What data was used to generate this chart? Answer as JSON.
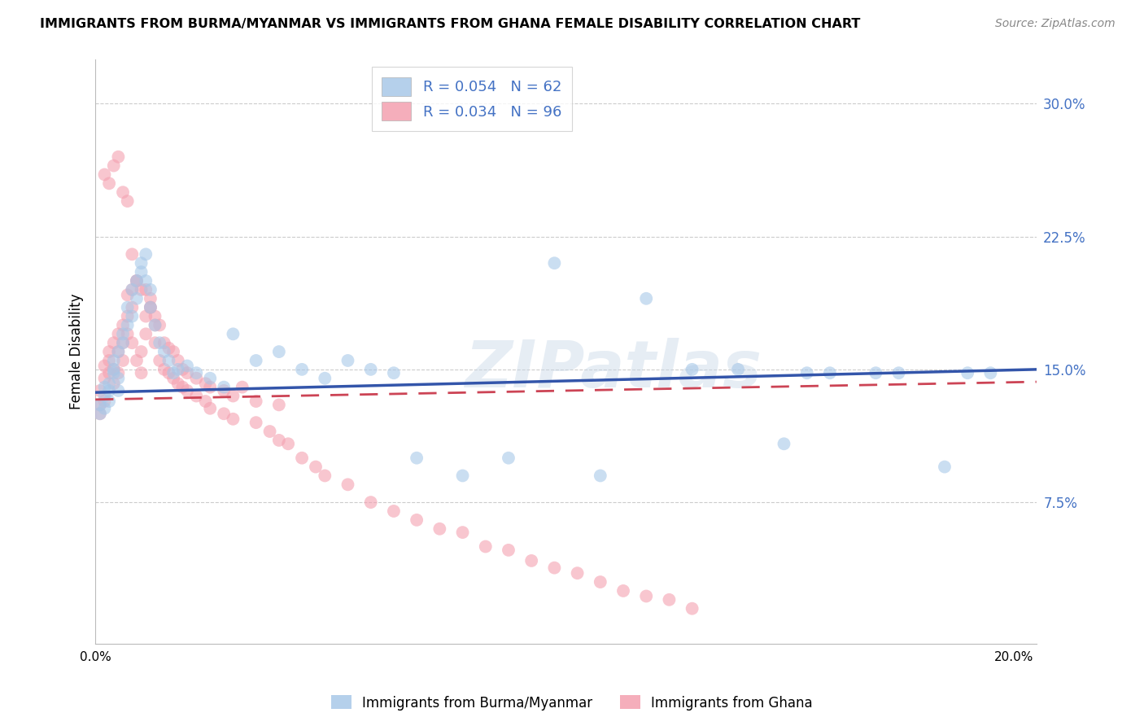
{
  "title": "IMMIGRANTS FROM BURMA/MYANMAR VS IMMIGRANTS FROM GHANA FEMALE DISABILITY CORRELATION CHART",
  "source": "Source: ZipAtlas.com",
  "ylabel": "Female Disability",
  "xlim": [
    0.0,
    0.205
  ],
  "ylim": [
    -0.005,
    0.325
  ],
  "yticks": [
    0.075,
    0.15,
    0.225,
    0.3
  ],
  "ytick_labels": [
    "7.5%",
    "15.0%",
    "22.5%",
    "30.0%"
  ],
  "grid_color": "#cccccc",
  "background_color": "#ffffff",
  "watermark": "ZIPatlas",
  "legend_label1": "R = 0.054   N = 62",
  "legend_label2": "R = 0.034   N = 96",
  "color_blue": "#a8c8e8",
  "color_pink": "#f4a0b0",
  "trendline_blue": "#3355aa",
  "trendline_pink": "#cc4455",
  "footer_label1": "Immigrants from Burma/Myanmar",
  "footer_label2": "Immigrants from Ghana",
  "burma_x": [
    0.001,
    0.001,
    0.002,
    0.002,
    0.002,
    0.003,
    0.003,
    0.003,
    0.004,
    0.004,
    0.004,
    0.005,
    0.005,
    0.005,
    0.006,
    0.006,
    0.007,
    0.007,
    0.008,
    0.008,
    0.009,
    0.009,
    0.01,
    0.01,
    0.011,
    0.011,
    0.012,
    0.012,
    0.013,
    0.014,
    0.015,
    0.016,
    0.017,
    0.018,
    0.02,
    0.022,
    0.025,
    0.028,
    0.03,
    0.035,
    0.04,
    0.045,
    0.05,
    0.055,
    0.06,
    0.065,
    0.07,
    0.08,
    0.09,
    0.1,
    0.11,
    0.12,
    0.13,
    0.14,
    0.15,
    0.155,
    0.16,
    0.17,
    0.175,
    0.185,
    0.19,
    0.195
  ],
  "burma_y": [
    0.13,
    0.125,
    0.14,
    0.128,
    0.135,
    0.132,
    0.138,
    0.142,
    0.148,
    0.155,
    0.15,
    0.16,
    0.145,
    0.138,
    0.17,
    0.165,
    0.175,
    0.185,
    0.195,
    0.18,
    0.2,
    0.19,
    0.21,
    0.205,
    0.215,
    0.2,
    0.185,
    0.195,
    0.175,
    0.165,
    0.16,
    0.155,
    0.148,
    0.15,
    0.152,
    0.148,
    0.145,
    0.14,
    0.17,
    0.155,
    0.16,
    0.15,
    0.145,
    0.155,
    0.15,
    0.148,
    0.1,
    0.09,
    0.1,
    0.21,
    0.09,
    0.19,
    0.15,
    0.15,
    0.108,
    0.148,
    0.148,
    0.148,
    0.148,
    0.095,
    0.148,
    0.148
  ],
  "ghana_x": [
    0.001,
    0.001,
    0.001,
    0.002,
    0.002,
    0.002,
    0.003,
    0.003,
    0.003,
    0.004,
    0.004,
    0.004,
    0.005,
    0.005,
    0.005,
    0.006,
    0.006,
    0.006,
    0.007,
    0.007,
    0.007,
    0.008,
    0.008,
    0.008,
    0.009,
    0.009,
    0.01,
    0.01,
    0.011,
    0.011,
    0.012,
    0.012,
    0.013,
    0.013,
    0.014,
    0.015,
    0.016,
    0.017,
    0.018,
    0.019,
    0.02,
    0.022,
    0.024,
    0.025,
    0.028,
    0.03,
    0.032,
    0.035,
    0.038,
    0.04,
    0.042,
    0.045,
    0.048,
    0.05,
    0.055,
    0.06,
    0.065,
    0.07,
    0.075,
    0.08,
    0.085,
    0.09,
    0.095,
    0.1,
    0.105,
    0.11,
    0.115,
    0.12,
    0.125,
    0.13,
    0.002,
    0.003,
    0.004,
    0.005,
    0.006,
    0.007,
    0.008,
    0.009,
    0.01,
    0.011,
    0.012,
    0.013,
    0.014,
    0.015,
    0.016,
    0.017,
    0.018,
    0.019,
    0.02,
    0.022,
    0.024,
    0.025,
    0.028,
    0.03,
    0.035,
    0.04
  ],
  "ghana_y": [
    0.13,
    0.138,
    0.125,
    0.145,
    0.152,
    0.132,
    0.148,
    0.155,
    0.16,
    0.142,
    0.165,
    0.15,
    0.17,
    0.16,
    0.148,
    0.175,
    0.165,
    0.155,
    0.18,
    0.192,
    0.17,
    0.185,
    0.195,
    0.165,
    0.2,
    0.155,
    0.16,
    0.148,
    0.18,
    0.17,
    0.19,
    0.185,
    0.175,
    0.165,
    0.155,
    0.15,
    0.148,
    0.145,
    0.142,
    0.14,
    0.138,
    0.135,
    0.132,
    0.128,
    0.125,
    0.122,
    0.14,
    0.12,
    0.115,
    0.11,
    0.108,
    0.1,
    0.095,
    0.09,
    0.085,
    0.075,
    0.07,
    0.065,
    0.06,
    0.058,
    0.05,
    0.048,
    0.042,
    0.038,
    0.035,
    0.03,
    0.025,
    0.022,
    0.02,
    0.015,
    0.26,
    0.255,
    0.265,
    0.27,
    0.25,
    0.245,
    0.215,
    0.2,
    0.195,
    0.195,
    0.185,
    0.18,
    0.175,
    0.165,
    0.162,
    0.16,
    0.155,
    0.15,
    0.148,
    0.145,
    0.142,
    0.14,
    0.138,
    0.135,
    0.132,
    0.13
  ]
}
